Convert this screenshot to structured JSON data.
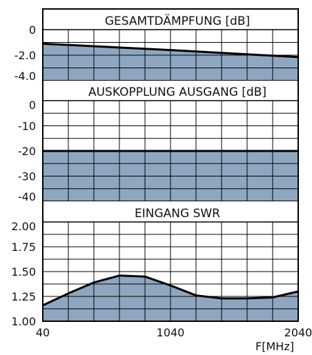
{
  "chart_data": [
    {
      "type": "area",
      "title": "GESAMTDÄMPFUNG [dB]",
      "x": [
        40,
        540,
        1040,
        1540,
        2040
      ],
      "series": [
        {
          "values": [
            -1.1,
            -1.35,
            -1.6,
            -1.88,
            -2.15
          ]
        }
      ],
      "ylim": [
        -4.0,
        0
      ],
      "yticks": [
        "0",
        "-2.0",
        "-4.0"
      ],
      "xlim": [
        40,
        2040
      ],
      "grid": true
    },
    {
      "type": "area",
      "title": "AUSKOPPLUNG AUSGANG [dB]",
      "x": [
        40,
        2040
      ],
      "series": [
        {
          "values": [
            -20,
            -20
          ]
        }
      ],
      "ylim": [
        -40,
        0
      ],
      "yticks": [
        "0",
        "-10",
        "-20",
        "-30",
        "-40"
      ],
      "xlim": [
        40,
        2040
      ],
      "grid": true
    },
    {
      "type": "area",
      "title": "EINGANG SWR",
      "x": [
        40,
        240,
        440,
        640,
        840,
        1040,
        1240,
        1440,
        1640,
        1840,
        2040
      ],
      "series": [
        {
          "values": [
            1.16,
            1.28,
            1.39,
            1.46,
            1.45,
            1.36,
            1.26,
            1.23,
            1.23,
            1.24,
            1.3
          ]
        }
      ],
      "ylim": [
        1.0,
        2.0
      ],
      "yticks": [
        "2.00",
        "1.75",
        "1.50",
        "1.25",
        "1.00"
      ],
      "xlim": [
        40,
        2040
      ],
      "xticks": [
        "40",
        "1040",
        "2040"
      ],
      "xlabel": "F[MHz]",
      "grid": true
    }
  ],
  "colors": {
    "fill": "#8fa6c0",
    "line": "#000000",
    "grid": "#000000",
    "background": "#ffffff"
  }
}
